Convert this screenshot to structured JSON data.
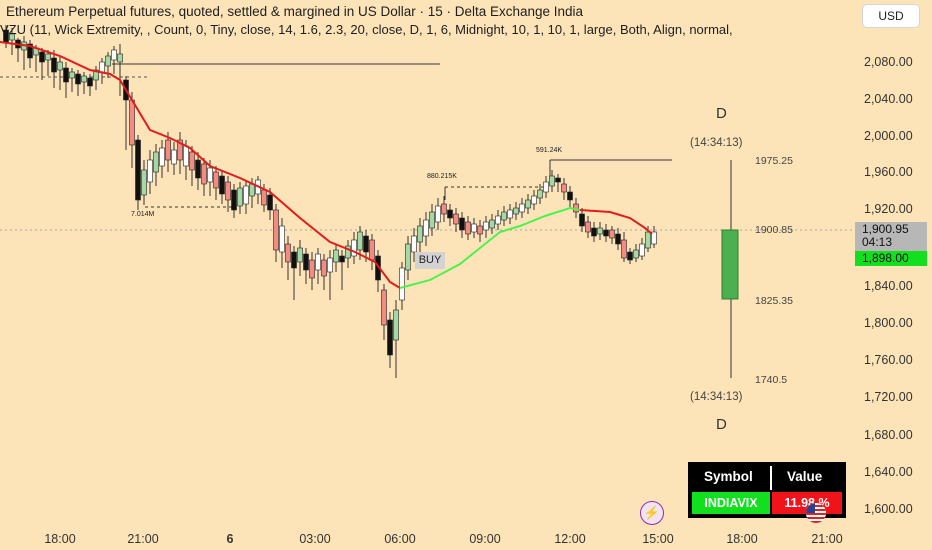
{
  "header": {
    "title": "Ethereum Perpetual futures, quoted, settled & margined in US Dollar · 15 · Delta Exchange India",
    "indicator": "VZU (11, Wick Extremity, , Count, 0, Tiny, close, 14, 1.6, 2.3, 20, close, D, 1, 6, Midnight, 10, 1, 10, 1, large, Both, Align, normal,",
    "currency_button": "USD"
  },
  "y_axis": {
    "ticks": [
      "2,080.00",
      "2,040.00",
      "2,000.00",
      "1,960.00",
      "1,920.00",
      "1,880.00",
      "1,840.00",
      "1,800.00",
      "1,760.00",
      "1,720.00",
      "1,680.00",
      "1,640.00",
      "1,600.00"
    ],
    "current_price": "1,900.95",
    "countdown": "04:13",
    "second_price": "1,898.00"
  },
  "x_axis": {
    "ticks": [
      {
        "label": "18:00",
        "bold": false
      },
      {
        "label": "21:00",
        "bold": false
      },
      {
        "label": "6",
        "bold": true
      },
      {
        "label": "03:00",
        "bold": false
      },
      {
        "label": "06:00",
        "bold": false
      },
      {
        "label": "09:00",
        "bold": false
      },
      {
        "label": "12:00",
        "bold": false
      },
      {
        "label": "15:00",
        "bold": false
      },
      {
        "label": "18:00",
        "bold": false
      },
      {
        "label": "21:00",
        "bold": false
      }
    ]
  },
  "annotations": {
    "vol_low": "7.014M",
    "vol_mid": "880.215K",
    "vol_high": "591.24K",
    "buy_label": "BUY",
    "daily_high": "1975.25",
    "daily_open": "1900.85",
    "daily_close": "1825.35",
    "daily_low": "1740.5",
    "timer_top": "(14:34:13)",
    "timer_bottom": "(14:34:13)",
    "period_top": "D",
    "period_bottom": "D"
  },
  "table": {
    "header_symbol": "Symbol",
    "header_value": "Value",
    "symbol": "INDIAVIX",
    "value": "11.98 %"
  },
  "icons": {
    "flash": "lightning-icon",
    "flag": "us-flag-icon"
  },
  "colors": {
    "background": "#fde4b8",
    "up": "#a3d9a5",
    "down": "#f28b82",
    "dark_candle": "#111111",
    "ema_red": "#e31b1b",
    "ema_green": "#4cf24c",
    "daily_candle": "#4caf50"
  }
}
